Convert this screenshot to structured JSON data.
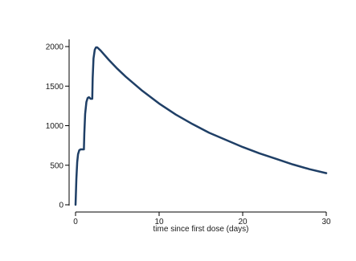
{
  "chart_data": {
    "type": "line",
    "title": "",
    "xlabel": "time since first dose (days)",
    "ylabel": "",
    "xlim": [
      0,
      30
    ],
    "ylim": [
      0,
      2000
    ],
    "x_ticks": [
      0,
      10,
      20,
      30
    ],
    "x_tick_labels": [
      "0",
      "10",
      "20",
      "30"
    ],
    "y_ticks": [
      0,
      500,
      1000,
      1500,
      2000
    ],
    "y_tick_labels": [
      "0",
      "500",
      "1000",
      "1500",
      "2000"
    ],
    "grid": false,
    "legend": "none",
    "line_color": "#1f3f66",
    "series": [
      {
        "x": [
          0,
          0.1,
          0.2,
          0.3,
          0.45,
          0.6,
          0.8,
          1.0,
          1.05,
          1.15,
          1.3,
          1.45,
          1.6,
          1.8,
          2.0,
          2.05,
          2.15,
          2.3,
          2.45,
          2.6,
          3.0,
          4.0,
          5.0,
          6.0,
          7.0,
          8.0,
          9.0,
          10.0,
          12.0,
          14.0,
          16.0,
          18.0,
          20.0,
          22.0,
          24.0,
          26.0,
          28.0,
          30.0
        ],
        "y": [
          0,
          330,
          540,
          640,
          690,
          700,
          700,
          700,
          900,
          1150,
          1300,
          1350,
          1360,
          1340,
          1340,
          1600,
          1850,
          1960,
          1990,
          1990,
          1950,
          1830,
          1720,
          1620,
          1530,
          1440,
          1360,
          1280,
          1140,
          1020,
          910,
          820,
          730,
          650,
          580,
          510,
          450,
          400
        ]
      }
    ]
  }
}
